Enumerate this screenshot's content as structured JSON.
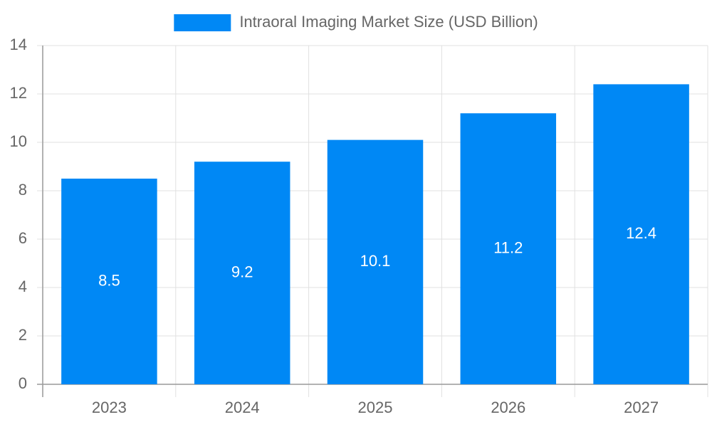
{
  "chart_data": {
    "type": "bar",
    "categories": [
      "2023",
      "2024",
      "2025",
      "2026",
      "2027"
    ],
    "series": [
      {
        "name": "Intraoral Imaging Market Size (USD Billion)",
        "color": "#0088f5",
        "values": [
          8.5,
          9.2,
          10.1,
          11.2,
          12.4
        ]
      }
    ],
    "ylim": [
      0,
      14
    ],
    "yticks": [
      0,
      2,
      4,
      6,
      8,
      10,
      12,
      14
    ],
    "grid": true,
    "legend": "top",
    "data_labels": true
  }
}
